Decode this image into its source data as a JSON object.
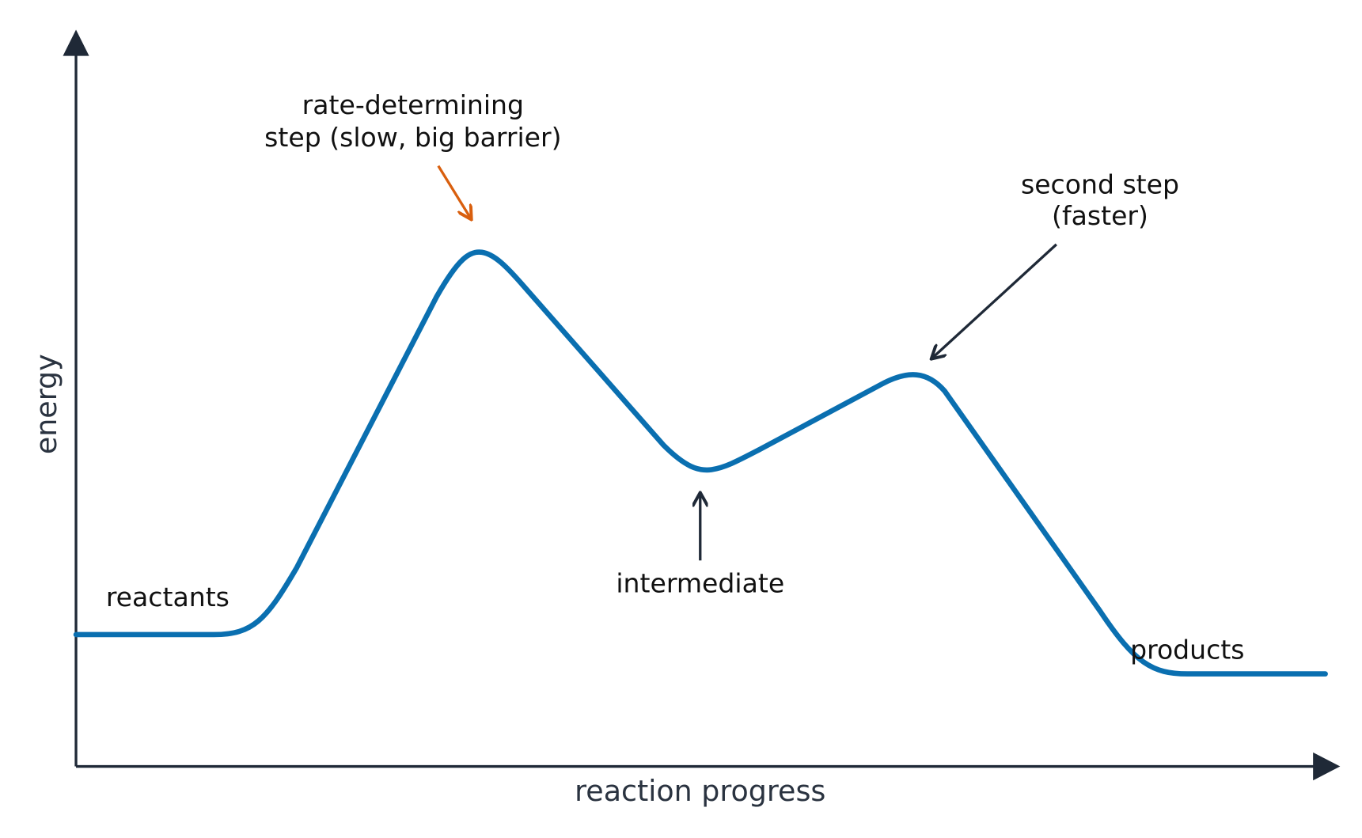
{
  "axes": {
    "y_label": "energy",
    "x_label": "reaction progress"
  },
  "annotations": {
    "rate_determining": [
      "rate-determining",
      "step (slow, big barrier)"
    ],
    "second_step": [
      "second step",
      "(faster)"
    ],
    "intermediate": "intermediate"
  },
  "labels": {
    "reactants": "reactants",
    "products": "products"
  }
}
